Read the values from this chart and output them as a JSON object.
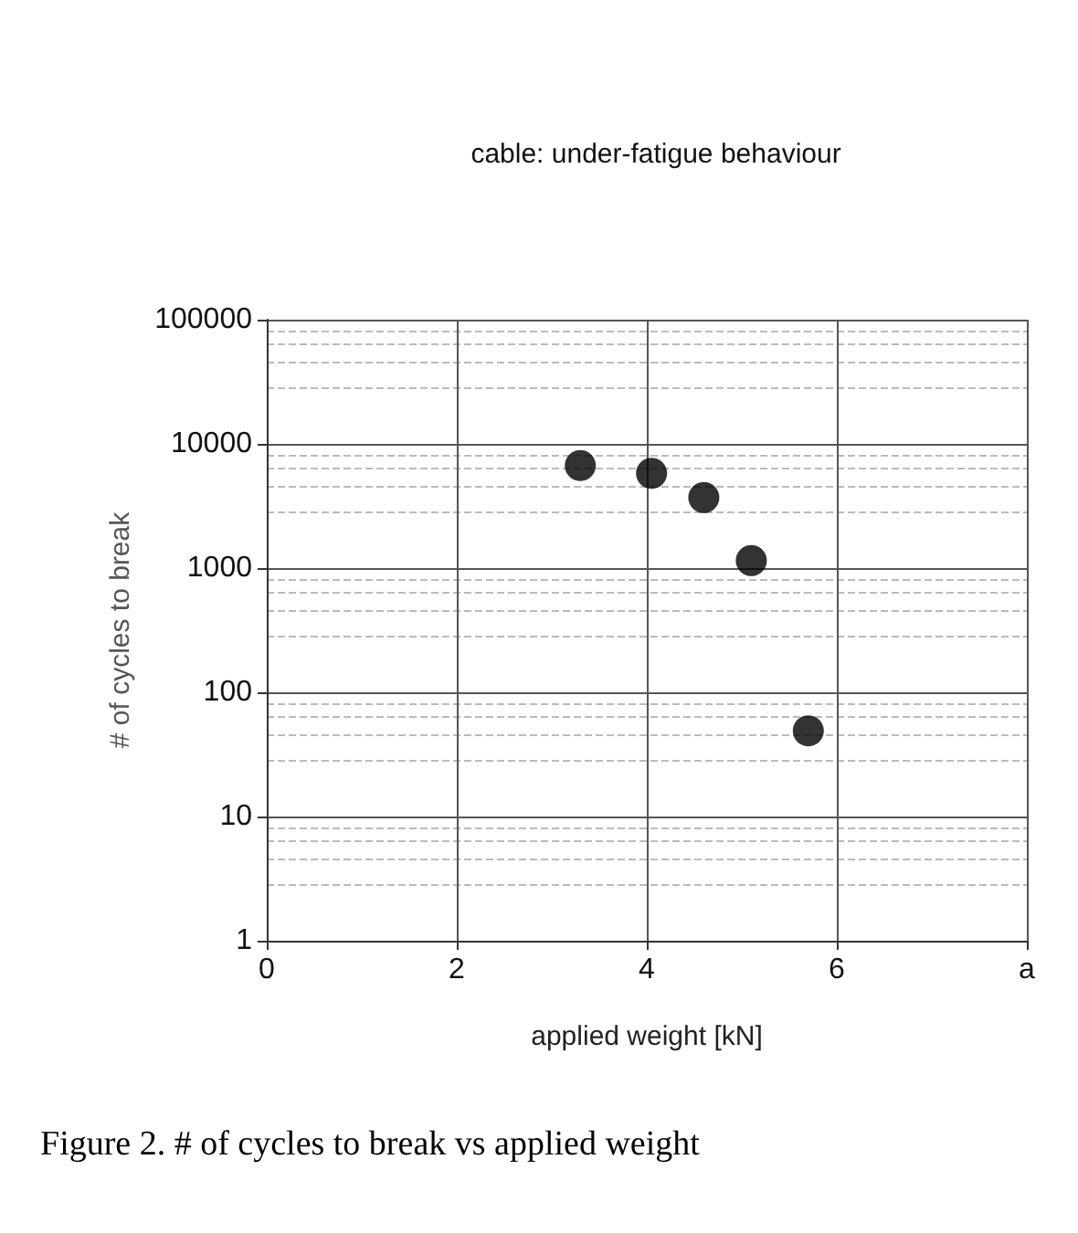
{
  "chart_data": {
    "type": "scatter",
    "title": "cable: under-fatigue behaviour",
    "xlabel": "applied weight [kN]",
    "ylabel": "# of cycles to break",
    "x": [
      3.3,
      4.05,
      4.6,
      5.1,
      5.7
    ],
    "series": [
      {
        "color": "#000000",
        "values": [
          6700,
          5800,
          3700,
          1150,
          49
        ]
      }
    ],
    "xlim": [
      0,
      8
    ],
    "xticks": [
      0,
      2,
      4,
      6,
      {
        "value": 8,
        "label": "a"
      }
    ],
    "ylim": [
      1,
      100000
    ],
    "yticks": [
      1,
      10,
      100,
      1000,
      10000,
      100000
    ],
    "log": "y",
    "grid": true,
    "marker": "circle",
    "annotations": [
      "Figure 2. # of cycles to break vs applied weight"
    ]
  }
}
